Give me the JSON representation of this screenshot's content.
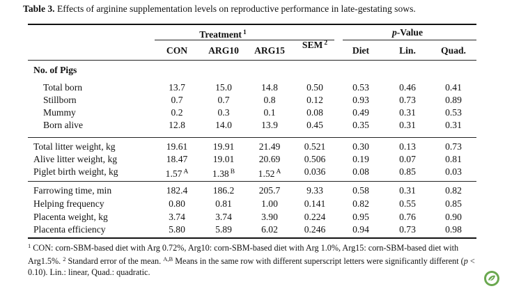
{
  "caption": {
    "label": "Table 3.",
    "text": "Effects of arginine supplementation levels on reproductive performance in late-gestating sows."
  },
  "header": {
    "treatment": "Treatment",
    "treatment_sup": "1",
    "sem": "SEM",
    "sem_sup": "2",
    "pvalue_italic": "p",
    "pvalue_rest": "-Value",
    "cols": [
      "CON",
      "ARG10",
      "ARG15",
      "Diet",
      "Lin.",
      "Quad."
    ]
  },
  "section_label": "No. of Pigs",
  "groups": [
    {
      "rows": [
        {
          "label": "Total born",
          "vals": [
            "13.7",
            "15.0",
            "14.8",
            "0.50",
            "0.53",
            "0.46",
            "0.41"
          ]
        },
        {
          "label": "Stillborn",
          "vals": [
            "0.7",
            "0.7",
            "0.8",
            "0.12",
            "0.93",
            "0.73",
            "0.89"
          ]
        },
        {
          "label": "Mummy",
          "vals": [
            "0.2",
            "0.3",
            "0.1",
            "0.08",
            "0.49",
            "0.31",
            "0.53"
          ]
        },
        {
          "label": "Born alive",
          "vals": [
            "12.8",
            "14.0",
            "13.9",
            "0.45",
            "0.35",
            "0.31",
            "0.31"
          ]
        }
      ]
    },
    {
      "rows": [
        {
          "label": "Total litter weight, kg",
          "vals": [
            "19.61",
            "19.91",
            "21.49",
            "0.521",
            "0.30",
            "0.13",
            "0.73"
          ]
        },
        {
          "label": "Alive litter weight, kg",
          "vals": [
            "18.47",
            "19.01",
            "20.69",
            "0.506",
            "0.19",
            "0.07",
            "0.81"
          ]
        },
        {
          "label": "Piglet birth weight, kg",
          "vals": [
            "1.57",
            "1.38",
            "1.52",
            "0.036",
            "0.08",
            "0.85",
            "0.03"
          ],
          "sups": [
            "A",
            "B",
            "A"
          ]
        }
      ]
    },
    {
      "rows": [
        {
          "label": "Farrowing time, min",
          "vals": [
            "182.4",
            "186.2",
            "205.7",
            "9.33",
            "0.58",
            "0.31",
            "0.82"
          ]
        },
        {
          "label": "Helping frequency",
          "vals": [
            "0.80",
            "0.81",
            "1.00",
            "0.141",
            "0.82",
            "0.55",
            "0.85"
          ]
        },
        {
          "label": "Placenta weight, kg",
          "vals": [
            "3.74",
            "3.74",
            "3.90",
            "0.224",
            "0.95",
            "0.76",
            "0.90"
          ]
        },
        {
          "label": "Placenta efficiency",
          "vals": [
            "5.80",
            "5.89",
            "6.02",
            "0.246",
            "0.94",
            "0.73",
            "0.98"
          ]
        }
      ]
    }
  ],
  "footnote": {
    "s1": "1",
    "t1": " CON: corn-SBM-based diet with Arg 0.72%, Arg10: corn-SBM-based diet with Arg 1.0%, Arg15: corn-SBM-based diet with Arg1.5%. ",
    "s2": "2",
    "t2": " Standard error of the mean. ",
    "s3": "A,B",
    "t3": " Means in the same row with different superscript letters were significantly different (",
    "p": "p",
    "t4": " < 0.10). Lin.: linear, Quad.: quadratic."
  },
  "colors": {
    "rule": "#111111",
    "logo_green": "#6aa84f"
  },
  "icons": {
    "logo": "publisher-logo-icon"
  }
}
